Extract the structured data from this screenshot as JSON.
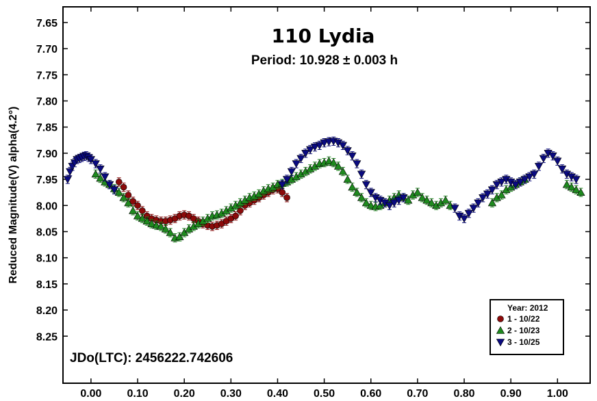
{
  "chart_data": {
    "type": "scatter",
    "title": "110 Lydia",
    "subtitle": "Period: 10.928 ± 0.003 h",
    "ylabel": "Reduced Magnitude(V) alpha(4.2°)",
    "xlabel": "",
    "annotation": "JDo(LTC): 2456222.742606",
    "xlim": [
      -0.06,
      1.07
    ],
    "ylim": [
      7.62,
      8.34
    ],
    "y_inverted": true,
    "x_ticks": [
      "0.00",
      "0.10",
      "0.20",
      "0.30",
      "0.40",
      "0.50",
      "0.60",
      "0.70",
      "0.80",
      "0.90",
      "1.00"
    ],
    "y_ticks": [
      "7.65",
      "7.70",
      "7.75",
      "7.80",
      "7.85",
      "7.90",
      "7.95",
      "8.00",
      "8.05",
      "8.10",
      "8.15",
      "8.20",
      "8.25"
    ],
    "error_bar": 0.008,
    "legend": {
      "title": "Year: 2012",
      "placement": "bottom-right"
    },
    "series": [
      {
        "name": "1 - 10/22",
        "marker": "circle",
        "color": "#8b0a0a",
        "points": [
          [
            0.06,
            7.955
          ],
          [
            0.07,
            7.965
          ],
          [
            0.08,
            7.98
          ],
          [
            0.09,
            7.992
          ],
          [
            0.1,
            8.0
          ],
          [
            0.11,
            8.01
          ],
          [
            0.12,
            8.02
          ],
          [
            0.13,
            8.025
          ],
          [
            0.14,
            8.028
          ],
          [
            0.15,
            8.03
          ],
          [
            0.16,
            8.03
          ],
          [
            0.17,
            8.028
          ],
          [
            0.18,
            8.025
          ],
          [
            0.19,
            8.02
          ],
          [
            0.2,
            8.018
          ],
          [
            0.21,
            8.02
          ],
          [
            0.22,
            8.025
          ],
          [
            0.23,
            8.03
          ],
          [
            0.24,
            8.035
          ],
          [
            0.25,
            8.038
          ],
          [
            0.26,
            8.04
          ],
          [
            0.27,
            8.038
          ],
          [
            0.28,
            8.035
          ],
          [
            0.29,
            8.03
          ],
          [
            0.3,
            8.025
          ],
          [
            0.31,
            8.02
          ],
          [
            0.32,
            8.01
          ],
          [
            0.33,
            8.0
          ],
          [
            0.34,
            7.995
          ],
          [
            0.35,
            7.99
          ],
          [
            0.36,
            7.985
          ],
          [
            0.37,
            7.98
          ],
          [
            0.38,
            7.975
          ],
          [
            0.39,
            7.97
          ],
          [
            0.4,
            7.968
          ],
          [
            0.41,
            7.975
          ],
          [
            0.42,
            7.985
          ]
        ]
      },
      {
        "name": "2 - 10/23",
        "marker": "triangle-up",
        "color": "#1e8a1e",
        "points": [
          [
            0.01,
            7.94
          ],
          [
            0.02,
            7.948
          ],
          [
            0.03,
            7.955
          ],
          [
            0.04,
            7.96
          ],
          [
            0.05,
            7.968
          ],
          [
            0.06,
            7.975
          ],
          [
            0.07,
            7.985
          ],
          [
            0.08,
            7.995
          ],
          [
            0.09,
            8.01
          ],
          [
            0.1,
            8.02
          ],
          [
            0.11,
            8.025
          ],
          [
            0.12,
            8.03
          ],
          [
            0.13,
            8.035
          ],
          [
            0.14,
            8.038
          ],
          [
            0.15,
            8.04
          ],
          [
            0.16,
            8.045
          ],
          [
            0.17,
            8.052
          ],
          [
            0.18,
            8.062
          ],
          [
            0.19,
            8.06
          ],
          [
            0.2,
            8.052
          ],
          [
            0.21,
            8.045
          ],
          [
            0.22,
            8.04
          ],
          [
            0.23,
            8.035
          ],
          [
            0.24,
            8.03
          ],
          [
            0.25,
            8.025
          ],
          [
            0.26,
            8.02
          ],
          [
            0.27,
            8.018
          ],
          [
            0.28,
            8.015
          ],
          [
            0.29,
            8.01
          ],
          [
            0.3,
            8.005
          ],
          [
            0.31,
            8.0
          ],
          [
            0.32,
            7.995
          ],
          [
            0.33,
            7.99
          ],
          [
            0.34,
            7.985
          ],
          [
            0.35,
            7.982
          ],
          [
            0.36,
            7.978
          ],
          [
            0.37,
            7.972
          ],
          [
            0.38,
            7.968
          ],
          [
            0.39,
            7.965
          ],
          [
            0.4,
            7.96
          ],
          [
            0.41,
            7.958
          ],
          [
            0.42,
            7.955
          ],
          [
            0.43,
            7.95
          ],
          [
            0.44,
            7.945
          ],
          [
            0.45,
            7.94
          ],
          [
            0.46,
            7.935
          ],
          [
            0.47,
            7.93
          ],
          [
            0.48,
            7.925
          ],
          [
            0.49,
            7.92
          ],
          [
            0.5,
            7.918
          ],
          [
            0.51,
            7.915
          ],
          [
            0.52,
            7.918
          ],
          [
            0.53,
            7.925
          ],
          [
            0.54,
            7.935
          ],
          [
            0.55,
            7.95
          ],
          [
            0.56,
            7.965
          ],
          [
            0.57,
            7.975
          ],
          [
            0.58,
            7.985
          ],
          [
            0.59,
            7.995
          ],
          [
            0.6,
            8.0
          ],
          [
            0.61,
            8.002
          ],
          [
            0.62,
            8.0
          ],
          [
            0.63,
            7.995
          ],
          [
            0.64,
            7.99
          ],
          [
            0.65,
            7.985
          ],
          [
            0.66,
            7.98
          ],
          [
            0.67,
            7.985
          ],
          [
            0.68,
            7.99
          ],
          [
            0.69,
            7.98
          ],
          [
            0.7,
            7.975
          ],
          [
            0.71,
            7.985
          ],
          [
            0.72,
            7.99
          ],
          [
            0.73,
            7.995
          ],
          [
            0.74,
            8.0
          ],
          [
            0.75,
            7.995
          ],
          [
            0.76,
            7.99
          ],
          [
            0.77,
            8.0
          ],
          [
            0.86,
            7.995
          ],
          [
            0.87,
            7.985
          ],
          [
            0.88,
            7.98
          ],
          [
            0.89,
            7.97
          ],
          [
            0.9,
            7.965
          ],
          [
            0.91,
            7.96
          ],
          [
            0.92,
            7.955
          ],
          [
            0.93,
            7.95
          ],
          [
            1.02,
            7.96
          ],
          [
            1.03,
            7.965
          ],
          [
            1.04,
            7.97
          ],
          [
            1.05,
            7.975
          ]
        ]
      },
      {
        "name": "3 - 10/25",
        "marker": "triangle-down",
        "color": "#0a0a80",
        "points": [
          [
            -0.05,
            7.95
          ],
          [
            -0.045,
            7.935
          ],
          [
            -0.04,
            7.925
          ],
          [
            -0.035,
            7.918
          ],
          [
            -0.03,
            7.912
          ],
          [
            -0.025,
            7.91
          ],
          [
            -0.02,
            7.908
          ],
          [
            -0.015,
            7.906
          ],
          [
            -0.01,
            7.905
          ],
          [
            -0.005,
            7.908
          ],
          [
            0.0,
            7.912
          ],
          [
            0.01,
            7.92
          ],
          [
            0.02,
            7.93
          ],
          [
            0.03,
            7.945
          ],
          [
            0.04,
            7.96
          ],
          [
            0.05,
            7.97
          ],
          [
            0.41,
            7.96
          ],
          [
            0.42,
            7.95
          ],
          [
            0.43,
            7.935
          ],
          [
            0.44,
            7.92
          ],
          [
            0.45,
            7.91
          ],
          [
            0.46,
            7.9
          ],
          [
            0.47,
            7.893
          ],
          [
            0.48,
            7.888
          ],
          [
            0.49,
            7.885
          ],
          [
            0.5,
            7.88
          ],
          [
            0.51,
            7.878
          ],
          [
            0.52,
            7.877
          ],
          [
            0.53,
            7.88
          ],
          [
            0.54,
            7.885
          ],
          [
            0.55,
            7.895
          ],
          [
            0.56,
            7.905
          ],
          [
            0.57,
            7.92
          ],
          [
            0.58,
            7.94
          ],
          [
            0.59,
            7.96
          ],
          [
            0.6,
            7.975
          ],
          [
            0.61,
            7.985
          ],
          [
            0.62,
            7.99
          ],
          [
            0.63,
            7.995
          ],
          [
            0.64,
            8.0
          ],
          [
            0.65,
            7.995
          ],
          [
            0.66,
            7.99
          ],
          [
            0.67,
            7.985
          ],
          [
            0.78,
            8.005
          ],
          [
            0.79,
            8.02
          ],
          [
            0.8,
            8.025
          ],
          [
            0.81,
            8.015
          ],
          [
            0.82,
            8.005
          ],
          [
            0.83,
            7.995
          ],
          [
            0.84,
            7.985
          ],
          [
            0.85,
            7.978
          ],
          [
            0.86,
            7.97
          ],
          [
            0.87,
            7.96
          ],
          [
            0.88,
            7.955
          ],
          [
            0.89,
            7.95
          ],
          [
            0.9,
            7.955
          ],
          [
            0.91,
            7.96
          ],
          [
            0.92,
            7.955
          ],
          [
            0.93,
            7.95
          ],
          [
            0.94,
            7.945
          ],
          [
            0.95,
            7.94
          ],
          [
            0.96,
            7.925
          ],
          [
            0.97,
            7.91
          ],
          [
            0.98,
            7.9
          ],
          [
            0.99,
            7.905
          ],
          [
            1.0,
            7.915
          ],
          [
            1.01,
            7.93
          ],
          [
            1.02,
            7.94
          ],
          [
            1.03,
            7.945
          ],
          [
            1.04,
            7.95
          ]
        ]
      }
    ]
  }
}
